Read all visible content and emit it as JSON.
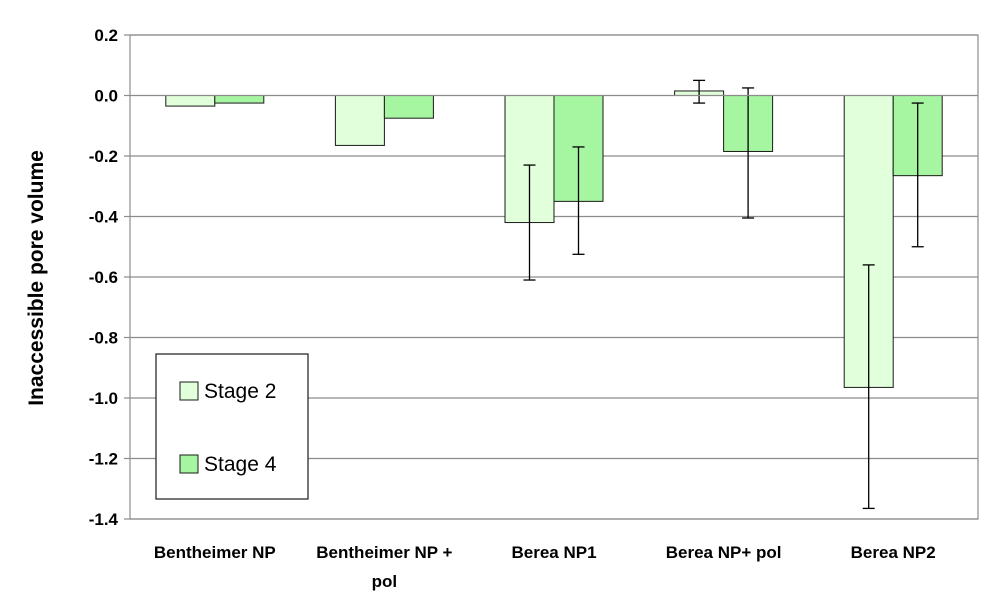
{
  "chart_data": {
    "type": "bar",
    "title": "",
    "xlabel": "",
    "ylabel": "Inaccessible pore volume",
    "ylim": [
      -1.4,
      0.2
    ],
    "yticks": [
      0.2,
      0.0,
      -0.2,
      -0.4,
      -0.6,
      -0.8,
      -1.0,
      -1.2,
      -1.4
    ],
    "ytick_labels": [
      "0.2",
      "0.0",
      "-0.2",
      "-0.4",
      "-0.6",
      "-0.8",
      "-1.0",
      "-1.2",
      "-1.4"
    ],
    "grid": true,
    "legend_position": "bottom-left",
    "categories": [
      [
        "Bentheimer NP"
      ],
      [
        "Bentheimer NP +",
        "pol"
      ],
      [
        "Berea NP1"
      ],
      [
        "Berea NP+ pol"
      ],
      [
        "Berea NP2"
      ]
    ],
    "series": [
      {
        "name": "Stage 2",
        "color": "#e0ffda",
        "values": [
          -0.035,
          -0.165,
          -0.42,
          0.015,
          -0.965
        ],
        "err_low": [
          null,
          null,
          -0.61,
          -0.025,
          -1.365
        ],
        "err_high": [
          null,
          null,
          -0.23,
          0.05,
          -0.56
        ]
      },
      {
        "name": "Stage 4",
        "color": "#a6f5a0",
        "values": [
          -0.025,
          -0.075,
          -0.35,
          -0.185,
          -0.265
        ],
        "err_low": [
          null,
          null,
          -0.525,
          -0.405,
          -0.5
        ],
        "err_high": [
          null,
          null,
          -0.17,
          0.025,
          -0.025
        ]
      }
    ]
  }
}
